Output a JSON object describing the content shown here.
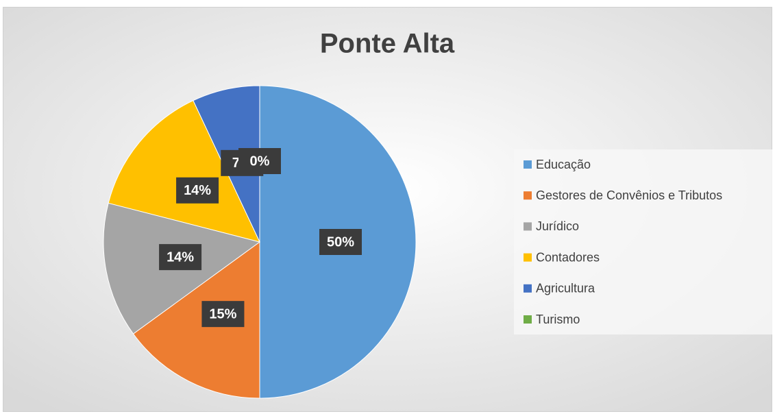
{
  "chart_data": {
    "type": "pie",
    "title": "Ponte Alta",
    "categories": [
      "Educação",
      "Gestores de Convênios e Tributos",
      "Jurídico",
      "Contadores",
      "Agricultura",
      "Turismo"
    ],
    "values": [
      50,
      15,
      14,
      14,
      7,
      0
    ],
    "value_labels": [
      "50%",
      "15%",
      "14%",
      "14%",
      "7%",
      "0%"
    ],
    "colors": [
      "#5b9bd5",
      "#ed7d31",
      "#a5a5a5",
      "#ffc000",
      "#4472c4",
      "#70ad47"
    ],
    "legend": "right"
  }
}
